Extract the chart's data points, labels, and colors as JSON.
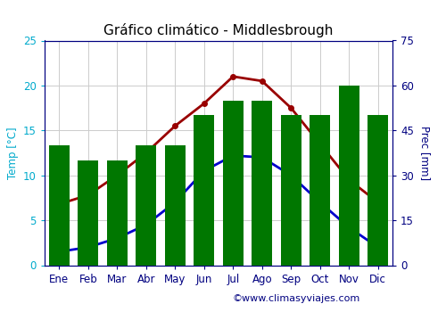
{
  "title": "Gráfico climático - Middlesbrough",
  "months": [
    "Ene",
    "Feb",
    "Mar",
    "Abr",
    "May",
    "Jun",
    "Jul",
    "Ago",
    "Sep",
    "Oct",
    "Nov",
    "Dic"
  ],
  "prec_mm": [
    40,
    35,
    35,
    40,
    40,
    50,
    55,
    55,
    50,
    50,
    60,
    50
  ],
  "temp_min": [
    1.5,
    2.0,
    3.0,
    4.5,
    7.0,
    10.5,
    12.2,
    12.0,
    10.0,
    7.0,
    4.2,
    2.0
  ],
  "temp_max": [
    6.8,
    7.8,
    10.0,
    12.5,
    15.5,
    18.0,
    21.0,
    20.5,
    17.5,
    13.5,
    9.5,
    7.0
  ],
  "bar_color": "#007700",
  "min_color": "#0000cc",
  "max_color": "#990000",
  "temp_ylim": [
    0,
    25
  ],
  "prec_ylim": [
    0,
    75
  ],
  "temp_yticks": [
    0,
    5,
    10,
    15,
    20,
    25
  ],
  "prec_yticks": [
    0,
    15,
    30,
    45,
    60,
    75
  ],
  "bg_color": "#ffffff",
  "grid_color": "#cccccc",
  "watermark": "©www.climasyviajes.com",
  "left_axis_color": "#00aacc",
  "right_axis_color": "#000080",
  "month_label_color": "#000080",
  "title_color": "#000000",
  "title_fontsize": 11,
  "tick_fontsize": 8.5,
  "legend_fontsize": 8.5,
  "watermark_fontsize": 8,
  "ylabel_left": "Temp [°C]",
  "ylabel_right": "Prec [mm]"
}
